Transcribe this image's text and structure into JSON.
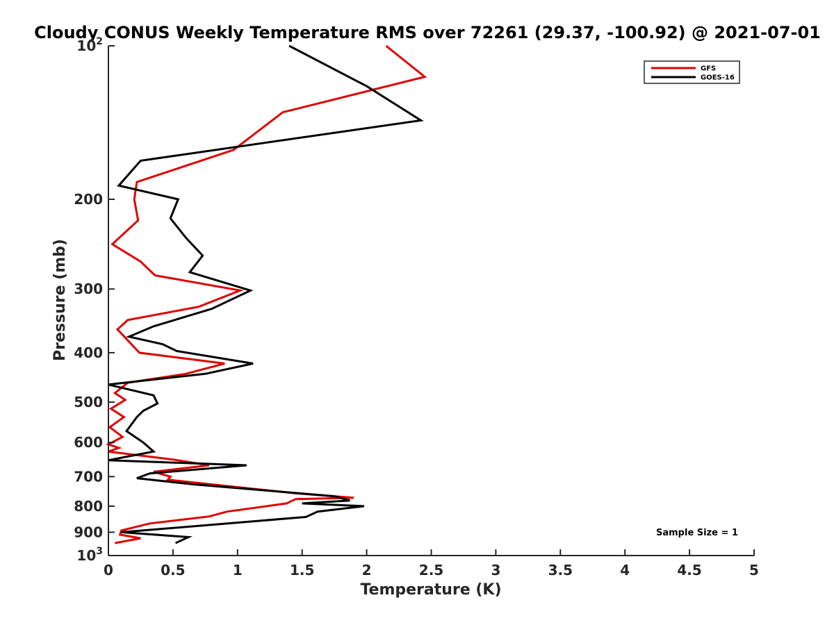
{
  "chart_data": {
    "type": "line",
    "title": "Cloudy CONUS Weekly Temperature RMS over 72261 (29.37, -100.92) @ 2021-07-01",
    "xlabel": "Temperature (K)",
    "ylabel": "Pressure (mb)",
    "xlim": [
      0,
      5
    ],
    "ylim": [
      100,
      1000
    ],
    "yscale": "log",
    "y_reversed": true,
    "grid": false,
    "legend_position": "top-right",
    "x_ticks": [
      0,
      0.5,
      1,
      1.5,
      2,
      2.5,
      3,
      3.5,
      4,
      4.5,
      5
    ],
    "x_tick_labels": [
      "0",
      "0.5",
      "1",
      "1.5",
      "2",
      "2.5",
      "3",
      "3.5",
      "4",
      "4.5",
      "5"
    ],
    "y_ticks": [
      100,
      200,
      300,
      400,
      500,
      600,
      700,
      800,
      900,
      1000
    ],
    "y_tick_labels": [
      {
        "value": 100,
        "base": "10",
        "exp": "2"
      },
      {
        "value": 200,
        "base": "200",
        "exp": ""
      },
      {
        "value": 300,
        "base": "300",
        "exp": ""
      },
      {
        "value": 400,
        "base": "400",
        "exp": ""
      },
      {
        "value": 500,
        "base": "500",
        "exp": ""
      },
      {
        "value": 600,
        "base": "600",
        "exp": ""
      },
      {
        "value": 700,
        "base": "700",
        "exp": ""
      },
      {
        "value": 800,
        "base": "800",
        "exp": ""
      },
      {
        "value": 900,
        "base": "900",
        "exp": ""
      },
      {
        "value": 1000,
        "base": "10",
        "exp": "3"
      }
    ],
    "series": [
      {
        "name": "GFS",
        "color": "#e00000",
        "points": [
          [
            2.15,
            100
          ],
          [
            2.45,
            115
          ],
          [
            1.35,
            135
          ],
          [
            0.97,
            160
          ],
          [
            0.22,
            185
          ],
          [
            0.2,
            200
          ],
          [
            0.23,
            220
          ],
          [
            0.03,
            245
          ],
          [
            0.25,
            265
          ],
          [
            0.36,
            282
          ],
          [
            1.02,
            302
          ],
          [
            0.7,
            325
          ],
          [
            0.15,
            345
          ],
          [
            0.07,
            360
          ],
          [
            0.24,
            400
          ],
          [
            0.9,
            420
          ],
          [
            0.6,
            440
          ],
          [
            0.15,
            458
          ],
          [
            0.05,
            480
          ],
          [
            0.13,
            495
          ],
          [
            0.02,
            515
          ],
          [
            0.12,
            535
          ],
          [
            0.01,
            560
          ],
          [
            0.11,
            585
          ],
          [
            0.0,
            605
          ],
          [
            0.08,
            615
          ],
          [
            0.0,
            625
          ],
          [
            0.5,
            648
          ],
          [
            0.78,
            665
          ],
          [
            0.35,
            685
          ],
          [
            0.48,
            700
          ],
          [
            0.46,
            710
          ],
          [
            1.45,
            755
          ],
          [
            1.9,
            770
          ],
          [
            1.45,
            775
          ],
          [
            1.38,
            790
          ],
          [
            0.92,
            820
          ],
          [
            0.78,
            838
          ],
          [
            0.32,
            865
          ],
          [
            0.1,
            893
          ],
          [
            0.09,
            910
          ],
          [
            0.25,
            925
          ],
          [
            0.05,
            945
          ]
        ]
      },
      {
        "name": "GOES-16",
        "color": "#000000",
        "points": [
          [
            1.4,
            100
          ],
          [
            2.0,
            120
          ],
          [
            2.42,
            140
          ],
          [
            0.25,
            168
          ],
          [
            0.08,
            188
          ],
          [
            0.54,
            200
          ],
          [
            0.48,
            218
          ],
          [
            0.6,
            238
          ],
          [
            0.73,
            258
          ],
          [
            0.63,
            278
          ],
          [
            1.1,
            302
          ],
          [
            0.8,
            328
          ],
          [
            0.35,
            355
          ],
          [
            0.16,
            372
          ],
          [
            0.42,
            385
          ],
          [
            0.53,
            397
          ],
          [
            1.12,
            420
          ],
          [
            0.75,
            440
          ],
          [
            0.0,
            462
          ],
          [
            0.35,
            485
          ],
          [
            0.38,
            503
          ],
          [
            0.27,
            520
          ],
          [
            0.22,
            535
          ],
          [
            0.14,
            570
          ],
          [
            0.27,
            600
          ],
          [
            0.35,
            625
          ],
          [
            0.0,
            650
          ],
          [
            1.07,
            665
          ],
          [
            0.32,
            690
          ],
          [
            0.22,
            705
          ],
          [
            0.66,
            725
          ],
          [
            1.75,
            765
          ],
          [
            1.87,
            780
          ],
          [
            1.5,
            790
          ],
          [
            1.98,
            800
          ],
          [
            1.62,
            820
          ],
          [
            1.53,
            840
          ],
          [
            0.1,
            900
          ],
          [
            0.62,
            920
          ],
          [
            0.52,
            945
          ]
        ]
      }
    ],
    "legend": [
      {
        "label": "GFS",
        "color": "#e00000"
      },
      {
        "label": "GOES-16",
        "color": "#000000"
      }
    ],
    "annotation": "Sample Size = 1"
  }
}
